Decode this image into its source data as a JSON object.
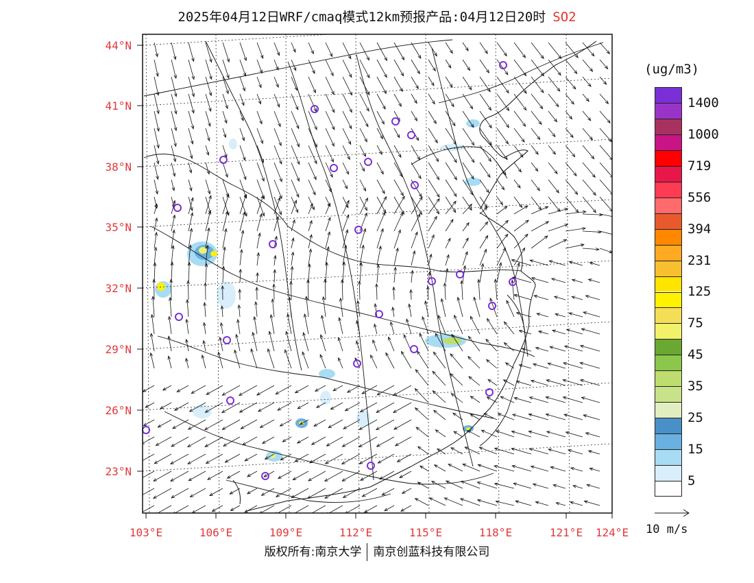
{
  "title": {
    "main": "2025年04月12日WRF/cmaq模式12km预报产品:04月12日20时",
    "pollutant": "SO2"
  },
  "axes": {
    "lat_labels": [
      "44°N",
      "41°N",
      "38°N",
      "35°N",
      "32°N",
      "29°N",
      "26°N",
      "23°N"
    ],
    "lon_labels": [
      "103°E",
      "106°E",
      "109°E",
      "112°E",
      "115°E",
      "118°E",
      "121°E",
      "124°E"
    ]
  },
  "legend": {
    "unit": "(ug/m3)",
    "labels": [
      "1400",
      "1000",
      "719",
      "556",
      "394",
      "231",
      "125",
      "75",
      "45",
      "35",
      "25",
      "15",
      "5"
    ],
    "colors": [
      "#7b2fd6",
      "#9a34c9",
      "#a8325f",
      "#c71585",
      "#ff0000",
      "#e8174a",
      "#ff3b54",
      "#ff6b6b",
      "#e85a2e",
      "#ff8800",
      "#ffaa22",
      "#f8c030",
      "#ffe400",
      "#fff200",
      "#f4de57",
      "#f2f26a",
      "#6aa832",
      "#8cc64a",
      "#bedd6e",
      "#c8e28a",
      "#e2eec0",
      "#4a90c8",
      "#6ab0e0",
      "#a8dcf4",
      "#d8eefa",
      "#ffffff"
    ]
  },
  "vector_reference": {
    "label": "10 m/s"
  },
  "footer": {
    "copyright": "版权所有:南京大学",
    "company": "南京创蓝科技有限公司"
  }
}
